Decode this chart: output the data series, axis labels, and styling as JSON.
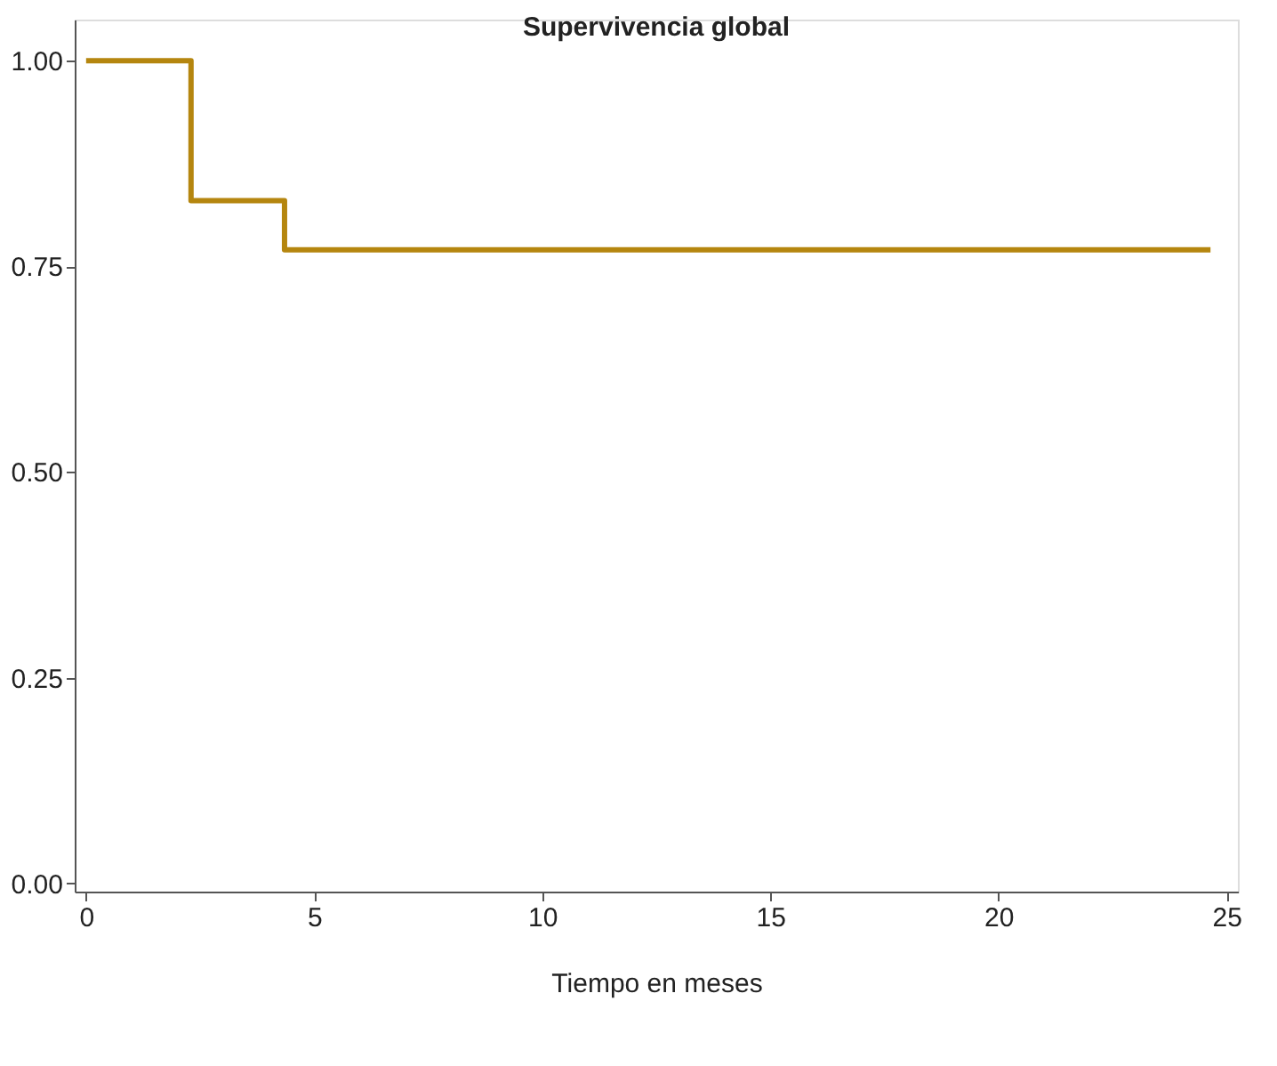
{
  "chart_data": {
    "type": "step",
    "title": "Supervivencia global",
    "xlabel": "Tiempo en meses",
    "x": [
      0,
      2.3,
      4.35,
      24.65
    ],
    "series": [
      {
        "color": "#b5860f",
        "values": [
          1.0,
          0.83,
          0.77,
          0.77
        ]
      }
    ],
    "xlim": [
      -0.25,
      25.25
    ],
    "xticks": [
      0,
      5,
      10,
      15,
      20,
      25
    ],
    "ylim": [
      -0.01,
      1.05
    ],
    "yticks": [
      {
        "value": 0,
        "label": "0.00"
      },
      {
        "value": 0.25,
        "label": "0.25"
      },
      {
        "value": 0.5,
        "label": "0.50"
      },
      {
        "value": 0.75,
        "label": "0.75"
      },
      {
        "value": 1,
        "label": "1.00"
      }
    ],
    "grid": false
  }
}
